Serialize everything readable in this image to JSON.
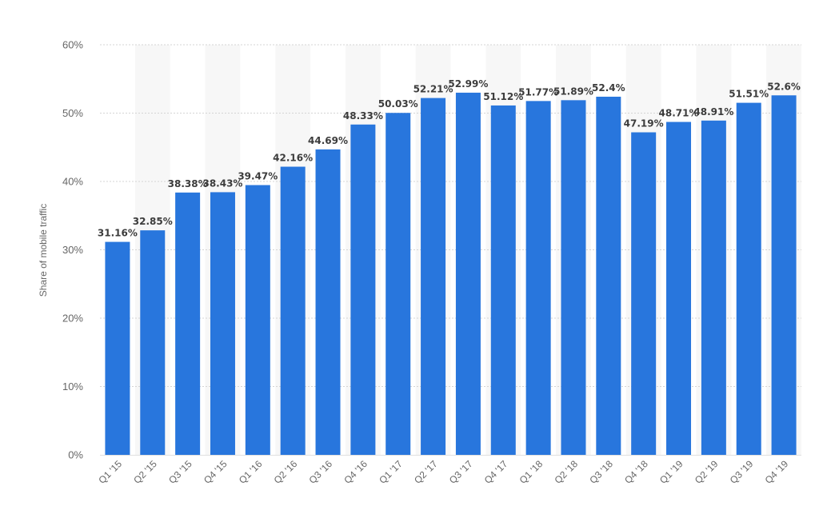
{
  "chart_data": {
    "type": "bar",
    "ylabel": "Share of mobile traffic",
    "xlabel": "",
    "ylim": [
      0,
      60
    ],
    "yticks": [
      0,
      10,
      20,
      30,
      40,
      50,
      60
    ],
    "ytick_labels": [
      "0%",
      "10%",
      "20%",
      "30%",
      "40%",
      "50%",
      "60%"
    ],
    "grid": true,
    "bar_color": "#2876dd",
    "alt_band_color": "#f7f7f7",
    "categories": [
      "Q1 '15",
      "Q2 '15",
      "Q3 '15",
      "Q4 '15",
      "Q1 '16",
      "Q2 '16",
      "Q3 '16",
      "Q4 '16",
      "Q1 '17",
      "Q2 '17",
      "Q3 '17",
      "Q4 '17",
      "Q1 '18",
      "Q2 '18",
      "Q3 '18",
      "Q4 '18",
      "Q1 '19",
      "Q2 '19",
      "Q3 '19",
      "Q4 '19"
    ],
    "values": [
      31.16,
      32.85,
      38.38,
      38.43,
      39.47,
      42.16,
      44.69,
      48.33,
      50.03,
      52.21,
      52.99,
      51.12,
      51.77,
      51.89,
      52.4,
      47.19,
      48.71,
      48.91,
      51.51,
      52.6
    ],
    "value_labels": [
      "31.16%",
      "32.85%",
      "38.38%",
      "38.43%",
      "39.47%",
      "42.16%",
      "44.69%",
      "48.33%",
      "50.03%",
      "52.21%",
      "52.99%",
      "51.12%",
      "51.77%",
      "51.89%",
      "52.4%",
      "47.19%",
      "48.71%",
      "48.91%",
      "51.51%",
      "52.6%"
    ]
  }
}
